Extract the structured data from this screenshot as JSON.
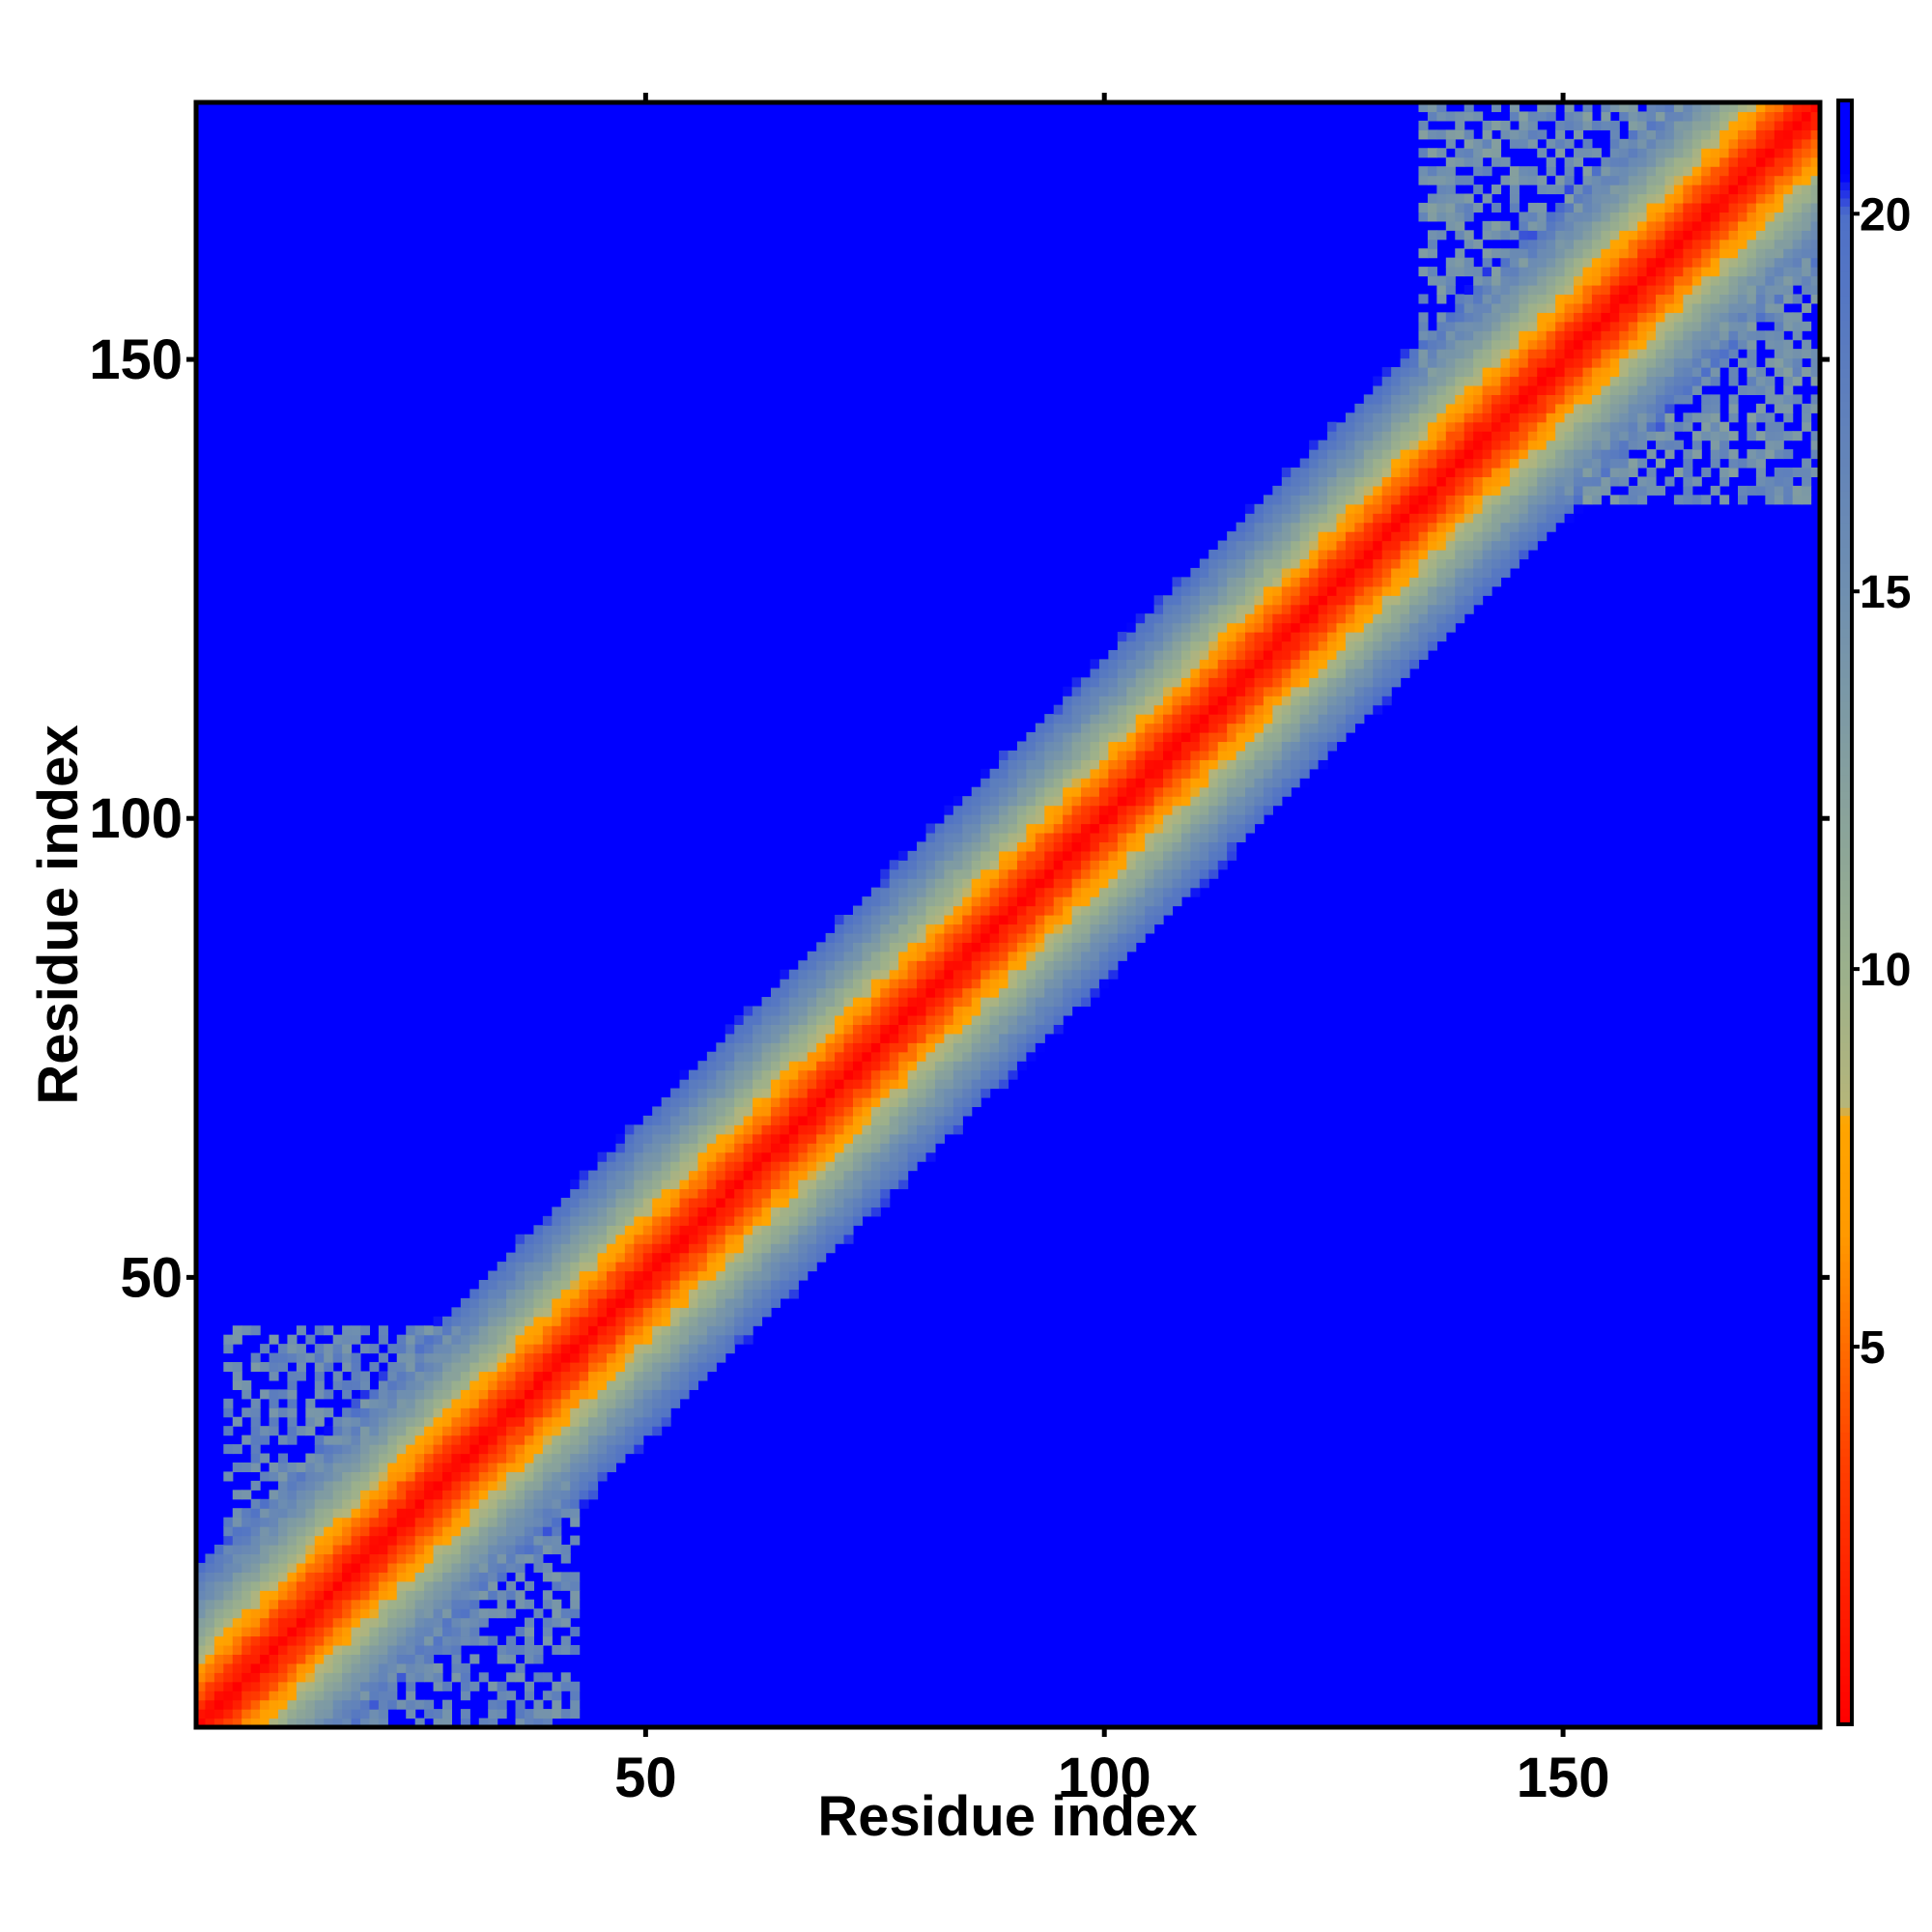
{
  "chart_data": {
    "type": "heatmap",
    "title": "",
    "xlabel": "Residue index",
    "ylabel": "Residue index",
    "n_residues": 178,
    "xlim": [
      1,
      178
    ],
    "ylim": [
      1,
      178
    ],
    "x_ticks": [
      50,
      100,
      150
    ],
    "y_ticks": [
      50,
      100,
      150
    ],
    "colorbar": {
      "range": [
        0,
        21.5
      ],
      "ticks": [
        5,
        10,
        15,
        20
      ],
      "stops": [
        {
          "value": 0,
          "color": "#ff0000"
        },
        {
          "value": 3.5,
          "color": "#ff4000"
        },
        {
          "value": 6.5,
          "color": "#ff9900"
        },
        {
          "value": 8,
          "color": "#ffa500"
        },
        {
          "value": 8.2,
          "color": "#b5b57a"
        },
        {
          "value": 10,
          "color": "#9bb08c"
        },
        {
          "value": 15,
          "color": "#6f8fb0"
        },
        {
          "value": 20,
          "color": "#4e70c8"
        },
        {
          "value": 20.5,
          "color": "#0000ff"
        },
        {
          "value": 21.5,
          "color": "#0000ff"
        }
      ]
    },
    "description_values": {
      "diagonal_value": 0,
      "background_value": 21,
      "distance_per_residue_offset": 1.15,
      "contact_clusters": [
        {
          "i_range": [
            4,
            42
          ],
          "j_range": [
            1,
            44
          ],
          "value": 16
        },
        {
          "i_range": [
            135,
            178
          ],
          "j_range": [
            135,
            178
          ],
          "value": 15
        }
      ]
    }
  }
}
